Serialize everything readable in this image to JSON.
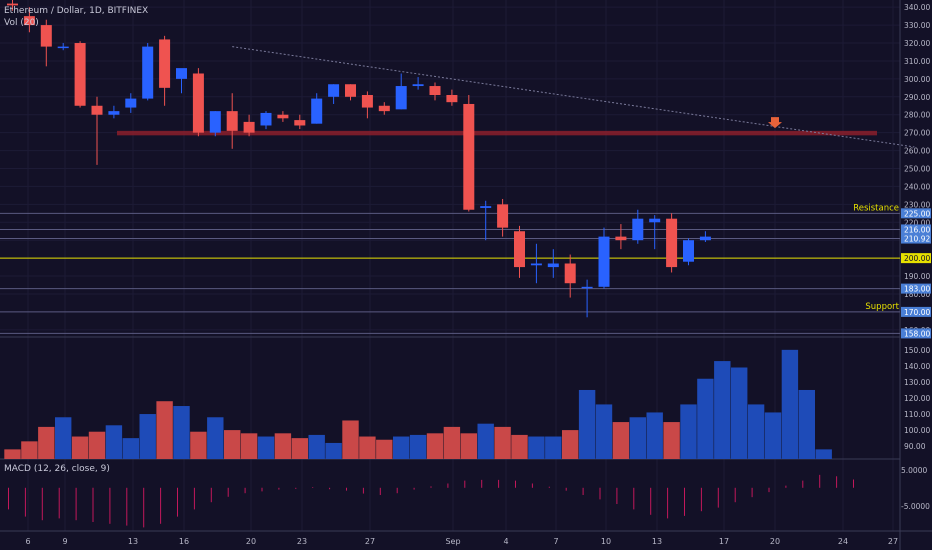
{
  "header": {
    "symbol_title": "Ethereum / Dollar, 1D, BITFINEX",
    "volume_label": "Vol (20)",
    "macd_label": "MACD (12, 26, close, 9)"
  },
  "colors": {
    "background": "#131127",
    "up": "#2962ff",
    "down": "#ef5350",
    "volume_up": "#1e4bb8",
    "volume_down": "#c94848",
    "support_resistance_zone": "#8b1f2c",
    "level_200": "#e6e000",
    "annotation_text": "#e6e000",
    "price_tag": "#4a7fd6",
    "trendline": "#7a7a9a",
    "arrow": "#e8633a"
  },
  "chart_data": [
    {
      "type": "candlestick",
      "title": "Ethereum / Dollar, 1D, BITFINEX",
      "y_axis_ticks": [
        340,
        330,
        320,
        310,
        300,
        290,
        280,
        270,
        260,
        250,
        240,
        230,
        220,
        210,
        200,
        190,
        180,
        170,
        160
      ],
      "ylim": [
        156,
        344
      ],
      "x_tick_labels": [
        "6",
        "9",
        "13",
        "16",
        "20",
        "23",
        "27",
        "Sep",
        "4",
        "7",
        "10",
        "13",
        "17",
        "20",
        "24",
        "27"
      ],
      "candles": [
        {
          "o": 342,
          "h": 346,
          "l": 338,
          "c": 341
        },
        {
          "o": 335,
          "h": 340,
          "l": 326,
          "c": 330
        },
        {
          "o": 330,
          "h": 333,
          "l": 307,
          "c": 318
        },
        {
          "o": 318,
          "h": 320,
          "l": 316,
          "c": 318
        },
        {
          "o": 320,
          "h": 321,
          "l": 284,
          "c": 285
        },
        {
          "o": 285,
          "h": 290,
          "l": 252,
          "c": 280
        },
        {
          "o": 280,
          "h": 285,
          "l": 278,
          "c": 282
        },
        {
          "o": 284,
          "h": 292,
          "l": 281,
          "c": 289
        },
        {
          "o": 289,
          "h": 320,
          "l": 288,
          "c": 318
        },
        {
          "o": 322,
          "h": 324,
          "l": 285,
          "c": 295
        },
        {
          "o": 300,
          "h": 305,
          "l": 292,
          "c": 306
        },
        {
          "o": 303,
          "h": 306,
          "l": 268,
          "c": 270
        },
        {
          "o": 270,
          "h": 282,
          "l": 268,
          "c": 282
        },
        {
          "o": 282,
          "h": 292,
          "l": 261,
          "c": 271
        },
        {
          "o": 276,
          "h": 280,
          "l": 268,
          "c": 270
        },
        {
          "o": 274,
          "h": 282,
          "l": 272,
          "c": 281
        },
        {
          "o": 280,
          "h": 282,
          "l": 276,
          "c": 278
        },
        {
          "o": 277,
          "h": 280,
          "l": 272,
          "c": 274
        },
        {
          "o": 275,
          "h": 292,
          "l": 275,
          "c": 289
        },
        {
          "o": 290,
          "h": 297,
          "l": 286,
          "c": 297
        },
        {
          "o": 297,
          "h": 297,
          "l": 288,
          "c": 290
        },
        {
          "o": 291,
          "h": 293,
          "l": 278,
          "c": 284
        },
        {
          "o": 285,
          "h": 287,
          "l": 280,
          "c": 282
        },
        {
          "o": 283,
          "h": 303,
          "l": 283,
          "c": 296
        },
        {
          "o": 296,
          "h": 301,
          "l": 294,
          "c": 297
        },
        {
          "o": 296,
          "h": 298,
          "l": 288,
          "c": 291
        },
        {
          "o": 291,
          "h": 294,
          "l": 285,
          "c": 287
        },
        {
          "o": 286,
          "h": 291,
          "l": 226,
          "c": 227
        },
        {
          "o": 228,
          "h": 232,
          "l": 210,
          "c": 229
        },
        {
          "o": 230,
          "h": 233,
          "l": 212,
          "c": 217
        },
        {
          "o": 215,
          "h": 218,
          "l": 189,
          "c": 195
        },
        {
          "o": 196,
          "h": 208,
          "l": 186,
          "c": 197
        },
        {
          "o": 195,
          "h": 205,
          "l": 189,
          "c": 197
        },
        {
          "o": 197,
          "h": 202,
          "l": 178,
          "c": 186
        },
        {
          "o": 184,
          "h": 188,
          "l": 167,
          "c": 184
        },
        {
          "o": 184,
          "h": 217,
          "l": 183,
          "c": 212
        },
        {
          "o": 212,
          "h": 219,
          "l": 205,
          "c": 210
        },
        {
          "o": 210,
          "h": 227,
          "l": 208,
          "c": 222
        },
        {
          "o": 220,
          "h": 224,
          "l": 205,
          "c": 222
        },
        {
          "o": 222,
          "h": 225,
          "l": 192,
          "c": 195
        },
        {
          "o": 198,
          "h": 211,
          "l": 196,
          "c": 210
        },
        {
          "o": 210,
          "h": 215,
          "l": 209,
          "c": 212
        }
      ],
      "horizontal_levels": [
        {
          "value": 225,
          "label": "225.00"
        },
        {
          "value": 216,
          "label": "216.00"
        },
        {
          "value": 210.92,
          "label": "210.92"
        },
        {
          "value": 200,
          "label": "200.00"
        },
        {
          "value": 183,
          "label": "183.00"
        },
        {
          "value": 170,
          "label": "170.00"
        },
        {
          "value": 158,
          "label": "158.00"
        }
      ],
      "zone": {
        "from": 268.5,
        "to": 271
      },
      "annotations": [
        {
          "text": "Resistance",
          "value": 225
        },
        {
          "text": "Support",
          "value": 170
        }
      ],
      "trendline": {
        "from_bar": 13,
        "from_value": 318,
        "to_bar": 51,
        "to_value": 262
      }
    },
    {
      "type": "bar",
      "title": "Vol (20)",
      "y_axis_ticks": [
        150,
        140,
        130,
        120,
        110,
        100,
        90
      ],
      "ylim": [
        82,
        158
      ],
      "values": [
        88,
        93,
        102,
        108,
        96,
        99,
        103,
        95,
        110,
        118,
        115,
        99,
        108,
        100,
        98,
        96,
        98,
        95,
        97,
        92,
        106,
        96,
        94,
        96,
        97,
        98,
        102,
        98,
        104,
        102,
        97,
        96,
        96,
        100,
        125,
        116,
        105,
        108,
        111,
        105,
        116,
        132,
        143,
        139,
        116,
        111,
        150,
        125,
        88
      ]
    },
    {
      "type": "histogram",
      "title": "MACD (12, 26, close, 9)",
      "y_axis_ticks": [
        5.0,
        -5.0
      ],
      "y_tick_labels": [
        "5.0000",
        "-5.0000"
      ],
      "ylim": [
        -12,
        8
      ],
      "values": [
        -6,
        -8,
        -9,
        -8.5,
        -9,
        -9.5,
        -10,
        -10.5,
        -11,
        -10,
        -8,
        -6,
        -4,
        -2.5,
        -1.5,
        -1,
        -0.5,
        -0.3,
        0.2,
        -0.4,
        -0.8,
        -1.6,
        -2,
        -1.5,
        -0.5,
        0.4,
        1.2,
        2,
        2.2,
        2.2,
        2,
        1.2,
        0.3,
        -0.8,
        -2,
        -3.2,
        -4.5,
        -6,
        -7.5,
        -8.5,
        -7.8,
        -6.5,
        -5.5,
        -4,
        -2.6,
        -1.2,
        0.6,
        2,
        3.6,
        3.2,
        2.3
      ]
    }
  ]
}
